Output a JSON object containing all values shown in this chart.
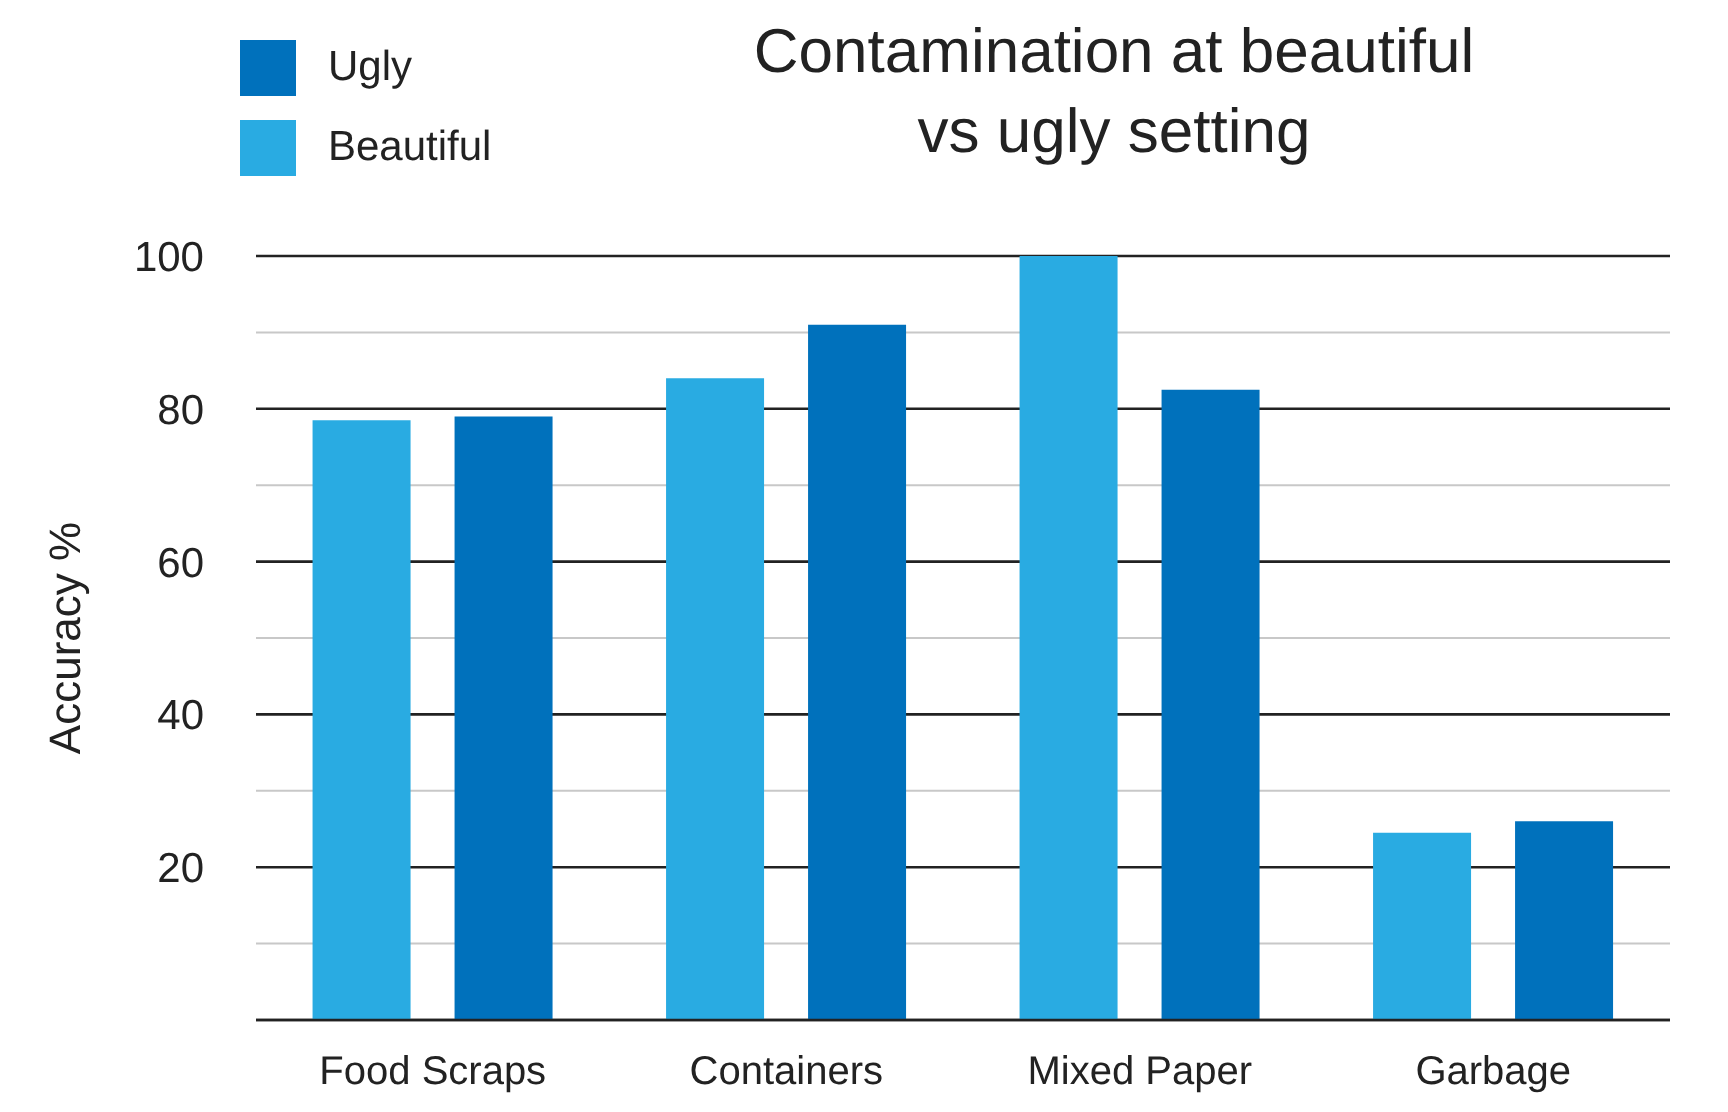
{
  "chart_data": {
    "type": "bar",
    "title": "Contamination at beautiful\nvs ugly setting",
    "ylabel": "Accuracy %",
    "categories": [
      "Food Scraps",
      "Containers",
      "Mixed Paper",
      "Garbage"
    ],
    "series": [
      {
        "name": "Beautiful",
        "color": "#29abe2",
        "values": [
          78.5,
          84,
          100,
          24.5
        ]
      },
      {
        "name": "Ugly",
        "color": "#0071bc",
        "values": [
          79,
          91,
          82.5,
          26
        ]
      }
    ],
    "ylim": [
      0,
      100
    ],
    "yticks": [
      {
        "value": 0,
        "label": null
      },
      {
        "value": 10,
        "label": null
      },
      20,
      {
        "value": 30,
        "label": null
      },
      40,
      {
        "value": 50,
        "label": null
      },
      60,
      {
        "value": 70,
        "label": null
      },
      80,
      {
        "value": 90,
        "label": null
      },
      100
    ],
    "grid": "y",
    "legend": "top left"
  }
}
